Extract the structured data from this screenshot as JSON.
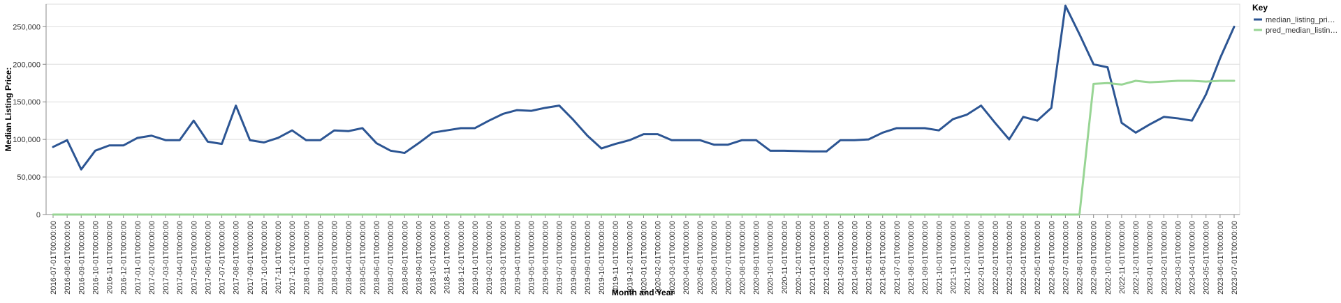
{
  "chart_data": {
    "type": "line",
    "xlabel": "Month and Year",
    "ylabel": "Median Listing Price:",
    "ylim": [
      0,
      280000
    ],
    "yticks": [
      0,
      50000,
      100000,
      150000,
      200000,
      250000
    ],
    "ytick_labels": [
      "0",
      "50,000",
      "100,000",
      "150,000",
      "200,000",
      "250,000"
    ],
    "grid": true,
    "legend": {
      "title": "Key",
      "placement": "top-right"
    },
    "x": [
      "2016-07-01T00:00:00",
      "2016-08-01T00:00:00",
      "2016-09-01T00:00:00",
      "2016-10-01T00:00:00",
      "2016-11-01T00:00:00",
      "2016-12-01T00:00:00",
      "2017-01-01T00:00:00",
      "2017-02-01T00:00:00",
      "2017-03-01T00:00:00",
      "2017-04-01T00:00:00",
      "2017-05-01T00:00:00",
      "2017-06-01T00:00:00",
      "2017-07-01T00:00:00",
      "2017-08-01T00:00:00",
      "2017-09-01T00:00:00",
      "2017-10-01T00:00:00",
      "2017-11-01T00:00:00",
      "2017-12-01T00:00:00",
      "2018-01-01T00:00:00",
      "2018-02-01T00:00:00",
      "2018-03-01T00:00:00",
      "2018-04-01T00:00:00",
      "2018-05-01T00:00:00",
      "2018-06-01T00:00:00",
      "2018-07-01T00:00:00",
      "2018-08-01T00:00:00",
      "2018-09-01T00:00:00",
      "2018-10-01T00:00:00",
      "2018-11-01T00:00:00",
      "2018-12-01T00:00:00",
      "2019-01-01T00:00:00",
      "2019-02-01T00:00:00",
      "2019-03-01T00:00:00",
      "2019-04-01T00:00:00",
      "2019-05-01T00:00:00",
      "2019-06-01T00:00:00",
      "2019-07-01T00:00:00",
      "2019-08-01T00:00:00",
      "2019-09-01T00:00:00",
      "2019-10-01T00:00:00",
      "2019-11-01T00:00:00",
      "2019-12-01T00:00:00",
      "2020-01-01T00:00:00",
      "2020-02-01T00:00:00",
      "2020-03-01T00:00:00",
      "2020-04-01T00:00:00",
      "2020-05-01T00:00:00",
      "2020-06-01T00:00:00",
      "2020-07-01T00:00:00",
      "2020-08-01T00:00:00",
      "2020-09-01T00:00:00",
      "2020-10-01T00:00:00",
      "2020-11-01T00:00:00",
      "2020-12-01T00:00:00",
      "2021-01-01T00:00:00",
      "2021-02-01T00:00:00",
      "2021-03-01T00:00:00",
      "2021-04-01T00:00:00",
      "2021-05-01T00:00:00",
      "2021-06-01T00:00:00",
      "2021-07-01T00:00:00",
      "2021-08-01T00:00:00",
      "2021-09-01T00:00:00",
      "2021-10-01T00:00:00",
      "2021-11-01T00:00:00",
      "2021-12-01T00:00:00",
      "2022-01-01T00:00:00",
      "2022-02-01T00:00:00",
      "2022-03-01T00:00:00",
      "2022-04-01T00:00:00",
      "2022-05-01T00:00:00",
      "2022-06-01T00:00:00",
      "2022-07-01T00:00:00",
      "2022-08-01T00:00:00",
      "2022-09-01T00:00:00",
      "2022-10-01T00:00:00",
      "2022-11-01T00:00:00",
      "2022-12-01T00:00:00",
      "2023-01-01T00:00:00",
      "2023-02-01T00:00:00",
      "2023-03-01T00:00:00",
      "2023-04-01T00:00:00",
      "2023-05-01T00:00:00",
      "2023-06-01T00:00:00",
      "2023-07-01T00:00:00"
    ],
    "series": [
      {
        "name": "median_listing_pri…",
        "color": "#2c5593",
        "values": [
          90000,
          99000,
          60000,
          85000,
          92000,
          92000,
          102000,
          105000,
          99000,
          99000,
          125000,
          97000,
          94000,
          145000,
          99000,
          96000,
          102000,
          112000,
          99000,
          99000,
          112000,
          111000,
          115000,
          95000,
          85000,
          82000,
          95000,
          109000,
          112000,
          115000,
          115000,
          125000,
          134000,
          139000,
          138000,
          142000,
          145000,
          126000,
          105000,
          88000,
          94000,
          99000,
          107000,
          107000,
          99000,
          99000,
          99000,
          93000,
          93000,
          99000,
          99000,
          85000,
          85000,
          84500,
          84000,
          84000,
          99000,
          99000,
          100000,
          109000,
          115000,
          115000,
          115000,
          112000,
          127000,
          133000,
          145000,
          122000,
          100000,
          130000,
          125000,
          142000,
          278000,
          240000,
          200000,
          196000,
          122000,
          109000,
          120000,
          130000,
          128000,
          125000,
          160000,
          208000,
          250000
        ]
      },
      {
        "name": "pred_median_listin…",
        "color": "#98d594",
        "values": [
          0,
          0,
          0,
          0,
          0,
          0,
          0,
          0,
          0,
          0,
          0,
          0,
          0,
          0,
          0,
          0,
          0,
          0,
          0,
          0,
          0,
          0,
          0,
          0,
          0,
          0,
          0,
          0,
          0,
          0,
          0,
          0,
          0,
          0,
          0,
          0,
          0,
          0,
          0,
          0,
          0,
          0,
          0,
          0,
          0,
          0,
          0,
          0,
          0,
          0,
          0,
          0,
          0,
          0,
          0,
          0,
          0,
          0,
          0,
          0,
          0,
          0,
          0,
          0,
          0,
          0,
          0,
          0,
          0,
          0,
          0,
          0,
          0,
          0,
          174000,
          175000,
          173000,
          178000,
          176000,
          177000,
          178000,
          178000,
          177000,
          178000,
          178000
        ]
      }
    ]
  }
}
